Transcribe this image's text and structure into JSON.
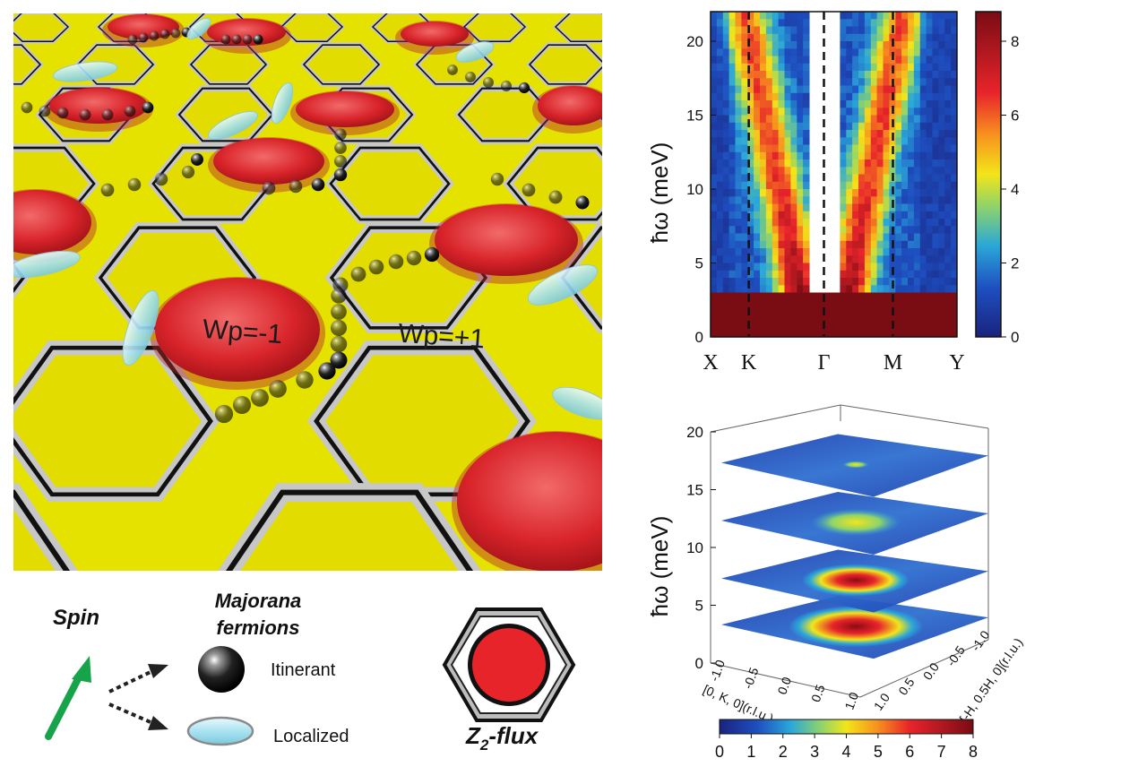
{
  "lattice": {
    "flux_minus_label": "Wp=-1",
    "flux_plus_label": "Wp=+1"
  },
  "legend": {
    "spin_label": "Spin",
    "majorana_label_line1": "Majorana",
    "majorana_label_line2": "fermions",
    "itinerant_label": "Itinerant",
    "localized_label": "Localized",
    "flux_label_prefix": "Z",
    "flux_label_sub": "2",
    "flux_label_suffix": "-flux"
  },
  "colors": {
    "plaquette_yellow": "#e6e200",
    "flux_red": "#e8242b",
    "spin_arrow_green": "#16a34a",
    "bond_gray": "#bdbdbd",
    "localized_cyan": "#bfeaf3"
  },
  "chart_data": [
    {
      "type": "heatmap",
      "ylabel": "ħω (meV)",
      "ylim": [
        0,
        22
      ],
      "yticks": [
        "0",
        "5",
        "10",
        "15",
        "20"
      ],
      "xtick_labels": [
        "X",
        "K",
        "Γ",
        "M",
        "Y"
      ],
      "dashed_lines_at": [
        "K",
        "Γ",
        "M"
      ],
      "colorbar": {
        "ticks": [
          "0",
          "2",
          "4",
          "6",
          "8"
        ],
        "range": [
          0,
          8.8
        ]
      }
    },
    {
      "type": "heatmap",
      "ylabel": "ħω (meV)",
      "zticks": [
        "0",
        "5",
        "10",
        "15",
        "20"
      ],
      "xaxis_label": "[0, K, 0](r.l.u.)",
      "xaxis_ticks": [
        "-1.0",
        "-0.5",
        "0.0",
        "0.5",
        "1.0"
      ],
      "yaxis_label": "[-H, 0.5H, 0](r.l.u.)",
      "yaxis_ticks": [
        "-1.0",
        "-0.5",
        "0.0",
        "0.5",
        "1.0"
      ],
      "slices_energy_meV": [
        1,
        5,
        10,
        15
      ],
      "colorbar": {
        "ticks": [
          "0",
          "1",
          "2",
          "3",
          "4",
          "5",
          "6",
          "7",
          "8"
        ],
        "range": [
          0,
          8
        ]
      }
    }
  ]
}
